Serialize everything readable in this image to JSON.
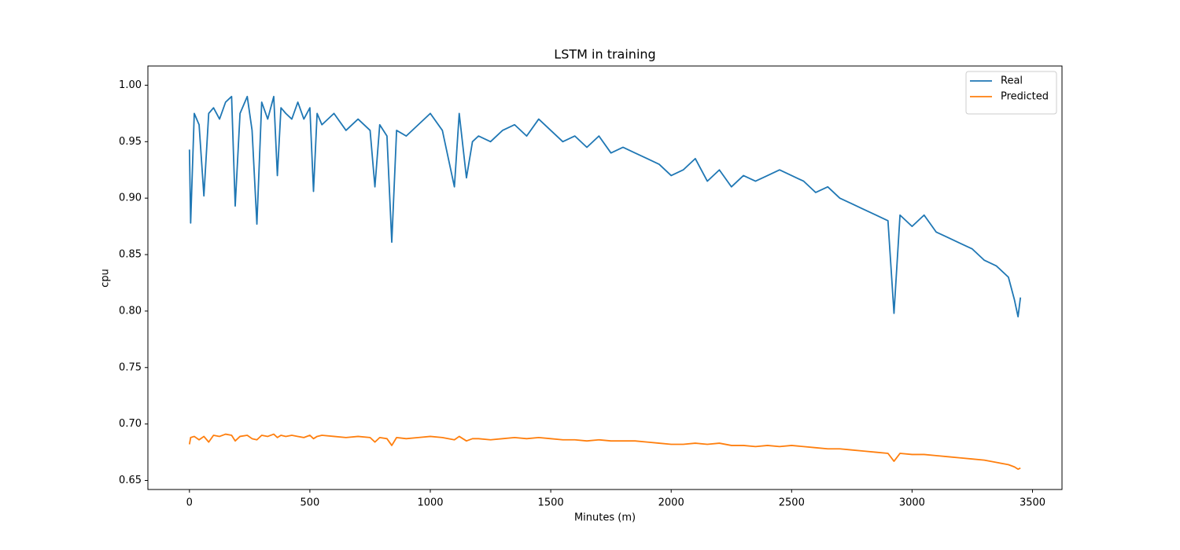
{
  "chart_data": {
    "type": "line",
    "title": "LSTM in training",
    "x_label": "Minutes (m)",
    "y_label": "cpu",
    "x": [
      0,
      5,
      20,
      40,
      60,
      80,
      100,
      125,
      150,
      175,
      190,
      210,
      240,
      260,
      280,
      300,
      325,
      350,
      365,
      380,
      400,
      425,
      450,
      475,
      500,
      515,
      530,
      550,
      600,
      650,
      700,
      750,
      770,
      790,
      820,
      840,
      860,
      900,
      950,
      1000,
      1050,
      1100,
      1120,
      1150,
      1175,
      1200,
      1250,
      1300,
      1350,
      1400,
      1450,
      1500,
      1550,
      1600,
      1650,
      1700,
      1750,
      1800,
      1850,
      1900,
      1950,
      2000,
      2050,
      2100,
      2150,
      2200,
      2250,
      2300,
      2350,
      2400,
      2450,
      2500,
      2550,
      2600,
      2650,
      2700,
      2750,
      2800,
      2850,
      2900,
      2925,
      2950,
      3000,
      3050,
      3100,
      3150,
      3200,
      3250,
      3300,
      3350,
      3400,
      3425,
      3440,
      3450
    ],
    "series": [
      {
        "name": "Real",
        "color": "#1f77b4",
        "values": [
          0.943,
          0.878,
          0.975,
          0.965,
          0.902,
          0.975,
          0.98,
          0.97,
          0.985,
          0.99,
          0.893,
          0.975,
          0.99,
          0.96,
          0.877,
          0.985,
          0.97,
          0.99,
          0.92,
          0.98,
          0.975,
          0.97,
          0.985,
          0.97,
          0.98,
          0.906,
          0.975,
          0.965,
          0.975,
          0.96,
          0.97,
          0.96,
          0.91,
          0.965,
          0.955,
          0.861,
          0.96,
          0.955,
          0.965,
          0.975,
          0.96,
          0.91,
          0.975,
          0.918,
          0.95,
          0.955,
          0.95,
          0.96,
          0.965,
          0.955,
          0.97,
          0.96,
          0.95,
          0.955,
          0.945,
          0.955,
          0.94,
          0.945,
          0.94,
          0.935,
          0.93,
          0.92,
          0.925,
          0.935,
          0.915,
          0.925,
          0.91,
          0.92,
          0.915,
          0.92,
          0.925,
          0.92,
          0.915,
          0.905,
          0.91,
          0.9,
          0.895,
          0.89,
          0.885,
          0.88,
          0.798,
          0.885,
          0.875,
          0.885,
          0.87,
          0.865,
          0.86,
          0.855,
          0.845,
          0.84,
          0.83,
          0.81,
          0.795,
          0.812
        ]
      },
      {
        "name": "Predicted",
        "color": "#ff7f0e",
        "values": [
          0.682,
          0.688,
          0.689,
          0.686,
          0.689,
          0.684,
          0.69,
          0.689,
          0.691,
          0.69,
          0.685,
          0.689,
          0.69,
          0.687,
          0.686,
          0.69,
          0.689,
          0.691,
          0.688,
          0.69,
          0.689,
          0.69,
          0.689,
          0.688,
          0.69,
          0.687,
          0.689,
          0.69,
          0.689,
          0.688,
          0.689,
          0.688,
          0.684,
          0.688,
          0.687,
          0.681,
          0.688,
          0.687,
          0.688,
          0.689,
          0.688,
          0.686,
          0.689,
          0.685,
          0.687,
          0.687,
          0.686,
          0.687,
          0.688,
          0.687,
          0.688,
          0.687,
          0.686,
          0.686,
          0.685,
          0.686,
          0.685,
          0.685,
          0.685,
          0.684,
          0.683,
          0.682,
          0.682,
          0.683,
          0.682,
          0.683,
          0.681,
          0.681,
          0.68,
          0.681,
          0.68,
          0.681,
          0.68,
          0.679,
          0.678,
          0.678,
          0.677,
          0.676,
          0.675,
          0.674,
          0.667,
          0.674,
          0.673,
          0.673,
          0.672,
          0.671,
          0.67,
          0.669,
          0.668,
          0.666,
          0.664,
          0.662,
          0.66,
          0.661
        ]
      }
    ],
    "xlim": [
      -172.5,
      3622.5
    ],
    "xticks": [
      0,
      500,
      1000,
      1500,
      2000,
      2500,
      3000,
      3500
    ],
    "ylim": [
      0.642,
      1.017
    ],
    "yticks": [
      0.65,
      {
        "value": 0.7,
        "label": "0.70"
      },
      0.75,
      {
        "value": 0.8,
        "label": "0.80"
      },
      0.85,
      {
        "value": 0.9,
        "label": "0.90"
      },
      0.95,
      {
        "value": 1.0,
        "label": "1.00"
      }
    ],
    "legend": "upper right"
  }
}
